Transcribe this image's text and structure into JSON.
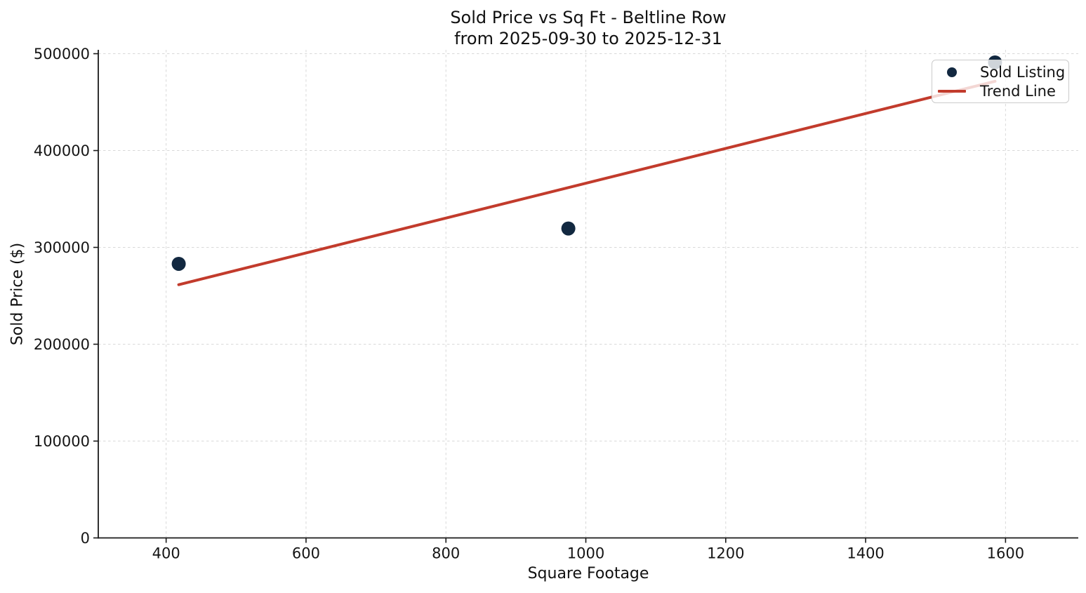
{
  "figure": {
    "title": "Sold Price vs Sq Ft - Beltline Row",
    "subtitle": "from 2025-09-30 to 2025-12-31",
    "xlabel": "Square Footage",
    "ylabel": "Sold Price ($)"
  },
  "legend": {
    "sold_listing_label": "Sold Listing",
    "trend_line_label": "Trend Line"
  },
  "colors": {
    "point": "#122840",
    "trend": "#c23b2c",
    "grid": "#d9d9d9",
    "spine": "#1a1a1a",
    "tick_text": "#151515"
  },
  "chart_data": {
    "type": "scatter",
    "title": "Sold Price vs Sq Ft - Beltline Row\nfrom 2025-09-30 to 2025-12-31",
    "xlabel": "Square Footage",
    "ylabel": "Sold Price ($)",
    "xlim": [
      303,
      1704
    ],
    "ylim": [
      0,
      504000
    ],
    "x_ticks": [
      400,
      600,
      800,
      1000,
      1200,
      1400,
      1600
    ],
    "y_ticks": [
      0,
      100000,
      200000,
      300000,
      400000,
      500000
    ],
    "grid": {
      "visible": true,
      "style": "dashed"
    },
    "legend_position": "upper right",
    "series": [
      {
        "name": "Sold Listing",
        "type": "scatter",
        "color": "#122840",
        "marker": "circle",
        "points": [
          {
            "sqft": 418,
            "price": 283000
          },
          {
            "sqft": 975,
            "price": 319500
          },
          {
            "sqft": 1585,
            "price": 491000
          }
        ]
      },
      {
        "name": "Trend Line",
        "type": "line",
        "color": "#c23b2c",
        "points": [
          {
            "sqft": 418,
            "price": 261500
          },
          {
            "sqft": 1585,
            "price": 471500
          }
        ]
      }
    ]
  }
}
